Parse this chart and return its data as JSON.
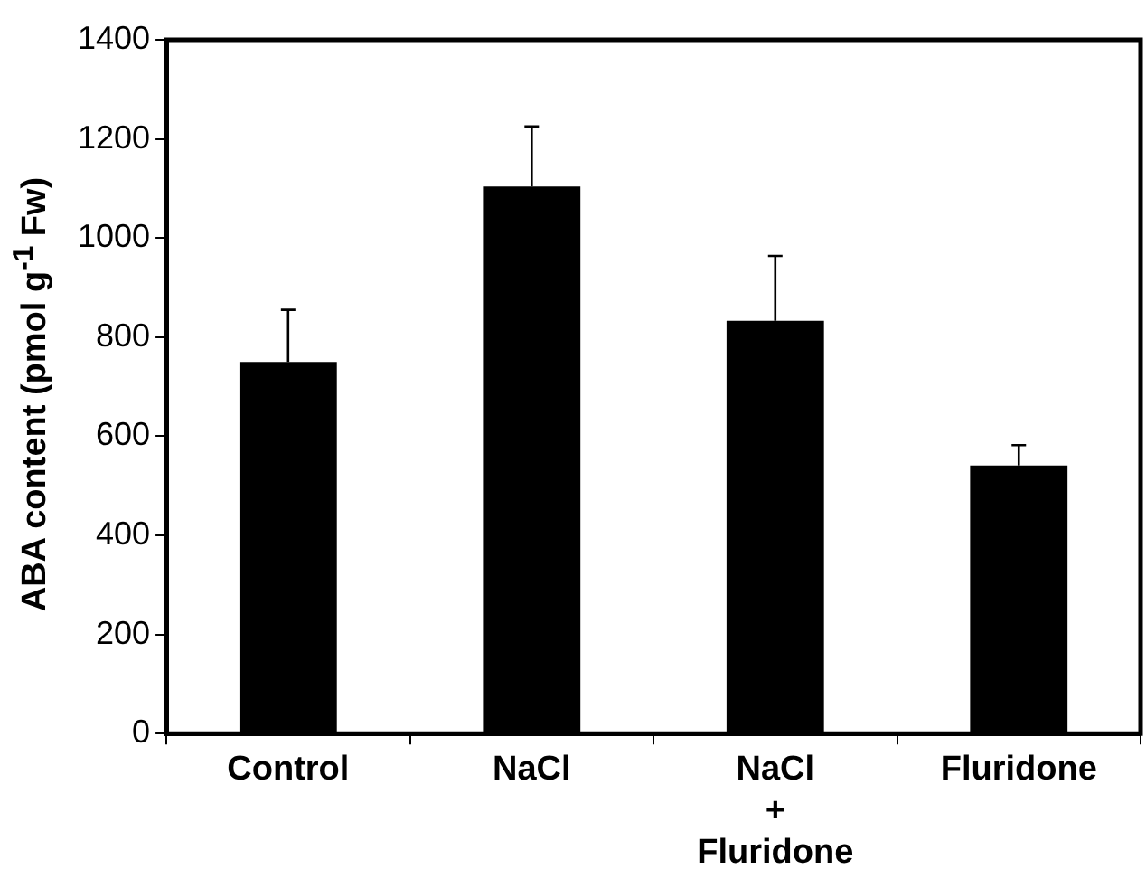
{
  "chart_data": {
    "type": "bar",
    "ylabel": "ABA content  (pmol g$^{-1}$ Fw)",
    "categories": [
      "Control",
      "NaCl",
      "NaCl\n+\nFluridone",
      "Fluridone"
    ],
    "values": [
      750,
      1104,
      833,
      541
    ],
    "errors": [
      [
        750,
        855
      ],
      [
        1104,
        1225
      ],
      [
        833,
        964
      ],
      [
        541,
        582
      ]
    ],
    "color": "#000000",
    "ylim": [
      0,
      1400
    ],
    "yticks": [
      0,
      200,
      400,
      600,
      800,
      1000,
      1200,
      1400
    ],
    "grid": false,
    "legend": false
  }
}
